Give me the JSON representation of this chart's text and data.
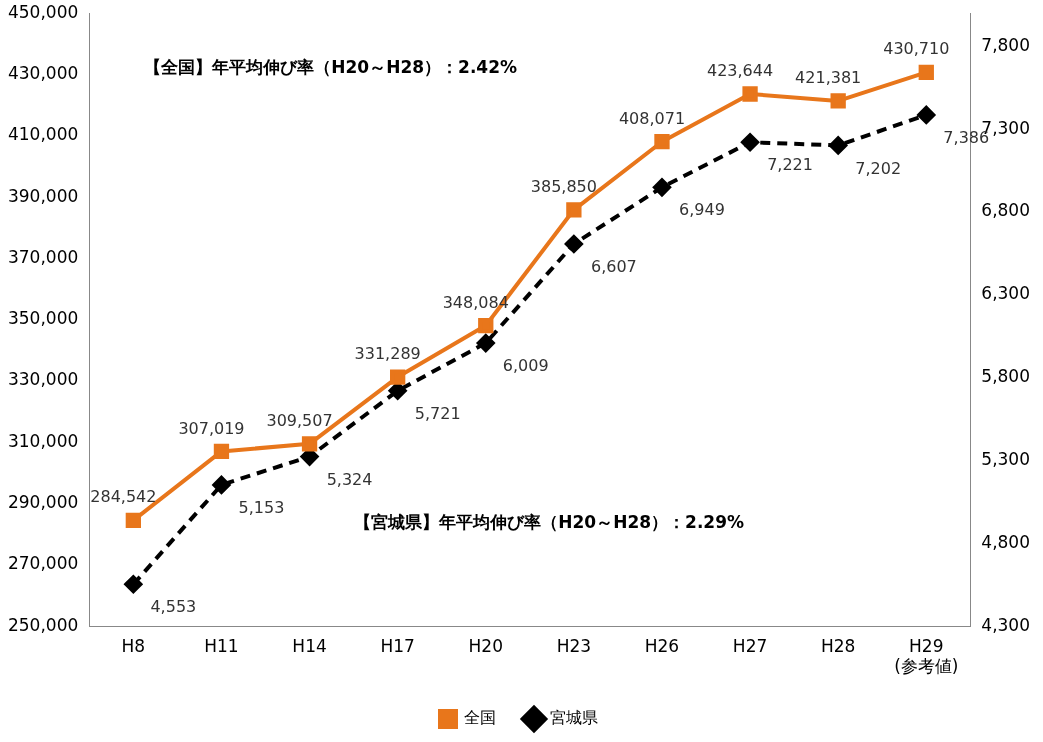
{
  "chart_data": {
    "type": "line",
    "categories": [
      "H8",
      "H11",
      "H14",
      "H17",
      "H20",
      "H23",
      "H26",
      "H27",
      "H28",
      "H29\n(参考値)"
    ],
    "series": [
      {
        "name": "全国",
        "color": "#e8761b",
        "marker": "square",
        "line_style": "solid",
        "values": [
          284542,
          307019,
          309507,
          331289,
          348084,
          385850,
          408071,
          423644,
          421381,
          430710
        ],
        "value_labels": [
          "284,542",
          "307,019",
          "309,507",
          "331,289",
          "348,084",
          "385,850",
          "408,071",
          "423,644",
          "421,381",
          "430,710"
        ]
      },
      {
        "name": "宮城県",
        "color": "#000000",
        "marker": "diamond",
        "line_style": "dashed",
        "axis": "y2",
        "values": [
          4553,
          5153,
          5324,
          5721,
          6009,
          6607,
          6949,
          7221,
          7202,
          7386
        ],
        "value_labels": [
          "4,553",
          "5,153",
          "5,324",
          "5,721",
          "6,009",
          "6,607",
          "6,949",
          "7,221",
          "7,202",
          "7,386"
        ]
      }
    ],
    "ylim": [
      250000,
      450000
    ],
    "yticks": [
      {
        "value": 250000,
        "label": "250,000"
      },
      {
        "value": 270000,
        "label": "270,000"
      },
      {
        "value": 290000,
        "label": "290,000"
      },
      {
        "value": 310000,
        "label": "310,000"
      },
      {
        "value": 330000,
        "label": "330,000"
      },
      {
        "value": 350000,
        "label": "350,000"
      },
      {
        "value": 370000,
        "label": "370,000"
      },
      {
        "value": 390000,
        "label": "390,000"
      },
      {
        "value": 410000,
        "label": "410,000"
      },
      {
        "value": 430000,
        "label": "430,000"
      },
      {
        "value": 450000,
        "label": "450,000"
      }
    ],
    "y2lim": [
      4300,
      8000
    ],
    "y2ticks": [
      {
        "value": 4300,
        "label": "4,300"
      },
      {
        "value": 4800,
        "label": "4,800"
      },
      {
        "value": 5300,
        "label": "5,300"
      },
      {
        "value": 5800,
        "label": "5,800"
      },
      {
        "value": 6300,
        "label": "6,300"
      },
      {
        "value": 6800,
        "label": "6,800"
      },
      {
        "value": 7300,
        "label": "7,300"
      },
      {
        "value": 7800,
        "label": "7,800"
      }
    ],
    "grid": false,
    "legend": "bottom",
    "annotations": [
      "【全国】年平均伸び率（H20～H28）：2.42%",
      "【宮城県】年平均伸び率（H20～H28）：2.29%"
    ]
  }
}
